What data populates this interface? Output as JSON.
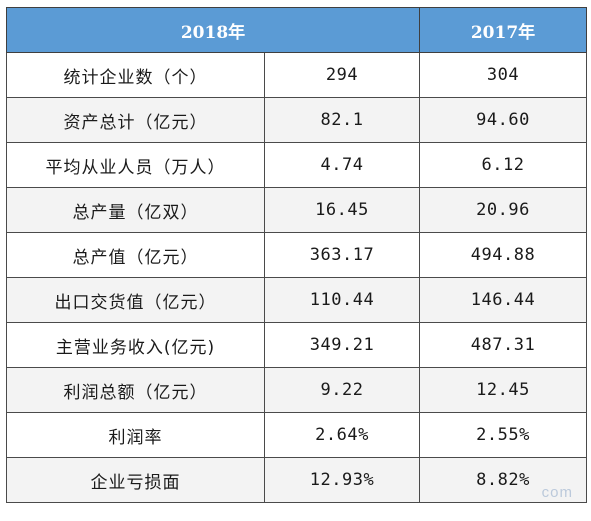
{
  "table": {
    "headers": [
      "",
      "2018年",
      "2017年"
    ],
    "rows": [
      {
        "label": "统计企业数（个）",
        "y2018": "294",
        "y2017": "304"
      },
      {
        "label": "资产总计（亿元）",
        "y2018": "82.1",
        "y2017": "94.60"
      },
      {
        "label": "平均从业人员（万人）",
        "y2018": "4.74",
        "y2017": "6.12"
      },
      {
        "label": "总产量（亿双）",
        "y2018": "16.45",
        "y2017": "20.96"
      },
      {
        "label": "总产值（亿元）",
        "y2018": "363.17",
        "y2017": "494.88"
      },
      {
        "label": "出口交货值（亿元）",
        "y2018": "110.44",
        "y2017": "146.44"
      },
      {
        "label": "主营业务收入(亿元)",
        "y2018": "349.21",
        "y2017": "487.31"
      },
      {
        "label": "利润总额（亿元）",
        "y2018": "9.22",
        "y2017": "12.45"
      },
      {
        "label": "利润率",
        "y2018": "2.64%",
        "y2017": "2.55%"
      },
      {
        "label": "企业亏损面",
        "y2018": "12.93%",
        "y2017": "8.82%"
      }
    ]
  },
  "watermark": {
    "text": "com"
  }
}
